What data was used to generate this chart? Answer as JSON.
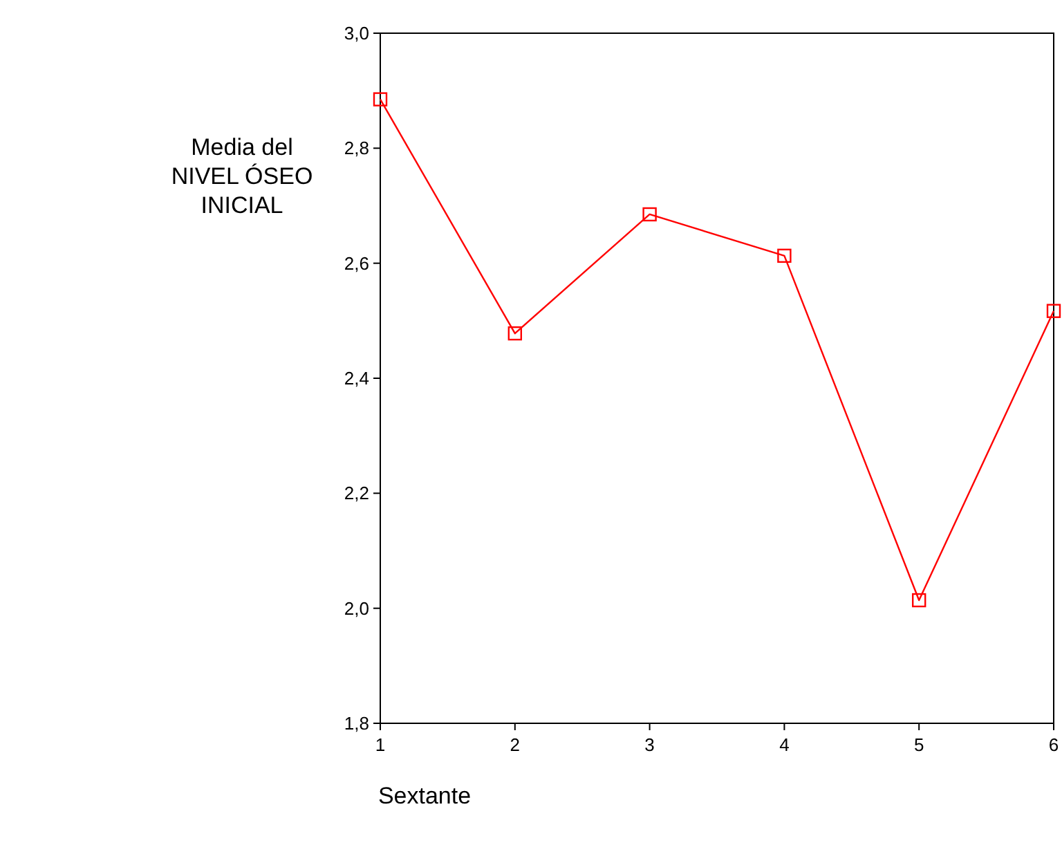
{
  "chart_data": {
    "type": "line",
    "xlabel": "Sextante",
    "ylabel": "Media del\nNIVEL ÓSEO\nINICIAL",
    "x": [
      1,
      2,
      3,
      4,
      5,
      6
    ],
    "series": [
      {
        "color": "#ff0000",
        "values": [
          2.885,
          2.478,
          2.685,
          2.613,
          2.014,
          2.517
        ]
      }
    ],
    "xlim": [
      1,
      6
    ],
    "xticks": [
      1,
      2,
      3,
      4,
      5,
      6
    ],
    "ylim": [
      1.8,
      3.0
    ],
    "yticks": [
      {
        "value": 1.8,
        "label": "1,8"
      },
      {
        "value": 2.0,
        "label": "2,0"
      },
      {
        "value": 2.2,
        "label": "2,2"
      },
      {
        "value": 2.4,
        "label": "2,4"
      },
      {
        "value": 2.6,
        "label": "2,6"
      },
      {
        "value": 2.8,
        "label": "2,8"
      },
      {
        "value": 3.0,
        "label": "3,0"
      }
    ],
    "grid": false,
    "marker": "square",
    "line_style": "solid"
  }
}
